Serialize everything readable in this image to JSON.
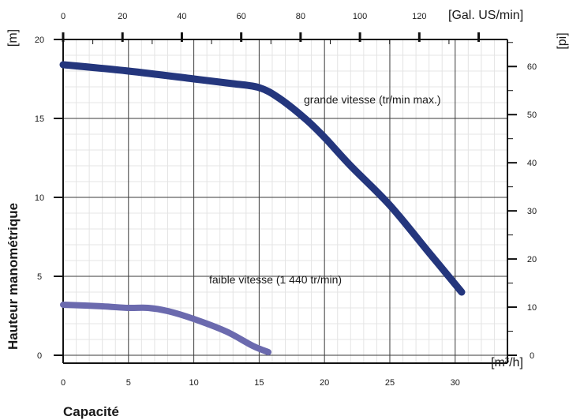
{
  "chart_data": {
    "type": "line",
    "xlabel": "Capacité",
    "ylabel": "Hauteur manométrique",
    "x_unit": "[m³/h]",
    "y_unit": "[m]",
    "top_unit": "[Gal. US/min]",
    "right_unit": "[pi]",
    "xlim": [
      0,
      34
    ],
    "ylim": [
      -0.5,
      20
    ],
    "x_ticks": [
      0,
      5,
      10,
      15,
      20,
      25,
      30
    ],
    "y_ticks": [
      0,
      5,
      10,
      15,
      20
    ],
    "top_ticks": [
      0,
      20,
      40,
      60,
      80,
      100,
      120
    ],
    "right_ticks": [
      0,
      10,
      20,
      30,
      40,
      50,
      60
    ],
    "grid": true,
    "series": [
      {
        "name": "grande vitesse (tr/min max.)",
        "color": "#24367d",
        "x": [
          0,
          5,
          10,
          13,
          15,
          16.5,
          18.5,
          20,
          22,
          25,
          28,
          30.5
        ],
        "y": [
          18.4,
          18.0,
          17.5,
          17.2,
          16.95,
          16.3,
          15.0,
          13.8,
          12.0,
          9.5,
          6.5,
          4.0
        ]
      },
      {
        "name": "faible vitesse (1 440 tr/min)",
        "color": "#6b6aae",
        "x": [
          0,
          3,
          5,
          6.5,
          8,
          10,
          12.5,
          14.5,
          15.7
        ],
        "y": [
          3.2,
          3.1,
          3.0,
          3.0,
          2.8,
          2.3,
          1.5,
          0.6,
          0.2
        ]
      }
    ]
  }
}
